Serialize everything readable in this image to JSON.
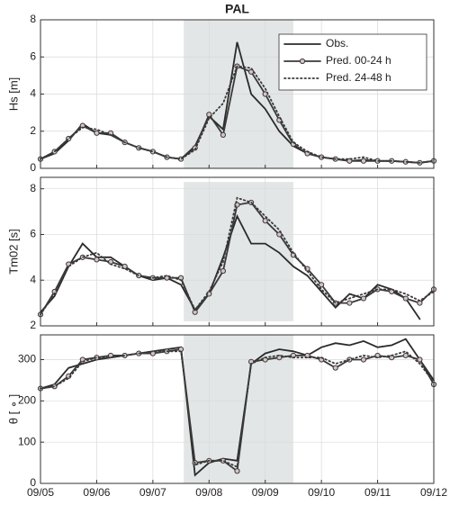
{
  "chart_data": [
    {
      "type": "line",
      "title": "PAL",
      "ylabel": "Hs [m]",
      "x": [
        0,
        0.25,
        0.5,
        0.75,
        1,
        1.25,
        1.5,
        1.75,
        2,
        2.25,
        2.5,
        2.75,
        3,
        3.25,
        3.5,
        3.75,
        4,
        4.25,
        4.5,
        4.75,
        5,
        5.25,
        5.5,
        5.75,
        6,
        6.25,
        6.5,
        6.75,
        7
      ],
      "series": [
        {
          "name": "Obs.",
          "color": "#2b2b2b",
          "values": [
            0.5,
            0.8,
            1.5,
            2.4,
            1.9,
            1.8,
            1.4,
            1.1,
            0.9,
            0.6,
            0.5,
            1.2,
            2.8,
            2.1,
            6.8,
            4.0,
            3.2,
            2.0,
            1.2,
            0.8,
            0.6,
            0.5,
            0.4,
            0.45,
            0.4,
            0.4,
            0.35,
            0.3,
            0.4
          ]
        },
        {
          "name": "Pred. 00-24 h",
          "color": "#3a3a3a",
          "marker": "o",
          "values": [
            0.5,
            0.9,
            1.6,
            2.3,
            1.9,
            1.9,
            1.4,
            1.1,
            0.9,
            0.6,
            0.5,
            1.1,
            2.9,
            1.8,
            5.5,
            5.2,
            4.0,
            2.6,
            1.3,
            0.8,
            0.6,
            0.5,
            0.4,
            0.4,
            0.4,
            0.4,
            0.35,
            0.3,
            0.4
          ]
        },
        {
          "name": "Pred. 24-48 h",
          "color": "#3a3a3a",
          "dash": "dotted",
          "values": [
            0.5,
            0.9,
            1.6,
            2.2,
            2.1,
            1.8,
            1.4,
            1.1,
            0.9,
            0.6,
            0.5,
            1.0,
            2.7,
            3.5,
            5.5,
            5.4,
            4.3,
            2.8,
            1.4,
            0.9,
            0.6,
            0.5,
            0.5,
            0.6,
            0.4,
            0.4,
            0.35,
            0.3,
            0.4
          ]
        }
      ],
      "xlim": [
        0,
        7
      ],
      "xticks": [
        0,
        1,
        2,
        3,
        4,
        5,
        6,
        7
      ],
      "ylim": [
        0,
        8
      ],
      "yticks": [
        0,
        2,
        4,
        6,
        8
      ],
      "highlight": [
        2.55,
        4.5
      ],
      "grid": true,
      "legend": "upper right"
    },
    {
      "type": "line",
      "ylabel": "Tm02 [s]",
      "x": [
        0,
        0.25,
        0.5,
        0.75,
        1,
        1.25,
        1.5,
        1.75,
        2,
        2.25,
        2.5,
        2.75,
        3,
        3.25,
        3.5,
        3.75,
        4,
        4.25,
        4.5,
        4.75,
        5,
        5.25,
        5.5,
        5.75,
        6,
        6.25,
        6.5,
        6.75,
        7
      ],
      "series": [
        {
          "name": "Obs.",
          "color": "#2b2b2b",
          "values": [
            2.6,
            3.3,
            4.6,
            5.6,
            5.0,
            5.0,
            4.6,
            4.2,
            4.0,
            4.1,
            3.8,
            2.7,
            3.4,
            5.0,
            6.8,
            5.6,
            5.6,
            5.2,
            4.6,
            4.2,
            3.5,
            2.8,
            3.4,
            3.2,
            3.8,
            3.6,
            3.2,
            2.3,
            null
          ]
        },
        {
          "name": "Pred. 00-24 h",
          "color": "#3a3a3a",
          "marker": "o",
          "values": [
            2.5,
            3.5,
            4.7,
            5.0,
            4.9,
            4.8,
            4.6,
            4.2,
            4.1,
            4.1,
            4.1,
            2.6,
            3.4,
            4.4,
            7.3,
            7.4,
            6.6,
            6.0,
            5.1,
            4.5,
            3.8,
            3.0,
            3.0,
            3.2,
            3.6,
            3.5,
            3.2,
            3.0,
            3.6
          ]
        },
        {
          "name": "Pred. 24-48 h",
          "color": "#3a3a3a",
          "dash": "dotted",
          "values": [
            2.5,
            3.4,
            4.6,
            5.0,
            5.2,
            4.7,
            4.5,
            4.2,
            4.1,
            4.2,
            4.0,
            2.7,
            3.5,
            4.8,
            7.6,
            7.4,
            6.8,
            6.2,
            5.2,
            4.4,
            3.6,
            3.0,
            3.2,
            3.4,
            3.6,
            3.6,
            3.4,
            3.1,
            3.5
          ]
        }
      ],
      "xlim": [
        0,
        7
      ],
      "xticks": [
        0,
        1,
        2,
        3,
        4,
        5,
        6,
        7
      ],
      "ylim": [
        2,
        8.5
      ],
      "yticks": [
        2,
        4,
        6,
        8
      ],
      "highlight": [
        2.55,
        4.5
      ],
      "highlight_y": [
        2.2,
        8.3
      ],
      "grid": true
    },
    {
      "type": "line",
      "ylabel": "θ [ ∘ ]",
      "x": [
        0,
        0.25,
        0.5,
        0.75,
        1,
        1.25,
        1.5,
        1.75,
        2,
        2.25,
        2.5,
        2.75,
        3,
        3.25,
        3.5,
        3.75,
        4,
        4.25,
        4.5,
        4.75,
        5,
        5.25,
        5.5,
        5.75,
        6,
        6.25,
        6.5,
        6.75,
        7
      ],
      "series": [
        {
          "name": "Obs.",
          "color": "#2b2b2b",
          "values": [
            230,
            240,
            280,
            290,
            300,
            305,
            310,
            315,
            320,
            325,
            330,
            20,
            50,
            60,
            55,
            290,
            315,
            325,
            320,
            310,
            330,
            340,
            335,
            345,
            330,
            335,
            350,
            300,
            250
          ]
        },
        {
          "name": "Pred. 00-24 h",
          "color": "#3a3a3a",
          "marker": "o",
          "values": [
            230,
            235,
            260,
            300,
            305,
            310,
            310,
            315,
            315,
            320,
            325,
            50,
            55,
            55,
            30,
            295,
            300,
            305,
            310,
            310,
            300,
            280,
            300,
            300,
            310,
            305,
            310,
            300,
            240
          ]
        },
        {
          "name": "Pred. 24-48 h",
          "color": "#3a3a3a",
          "dash": "dotted",
          "values": [
            230,
            235,
            255,
            295,
            305,
            305,
            310,
            315,
            320,
            320,
            320,
            45,
            55,
            55,
            40,
            290,
            305,
            310,
            305,
            305,
            305,
            290,
            300,
            310,
            305,
            310,
            320,
            290,
            245
          ]
        }
      ],
      "xlim": [
        0,
        7
      ],
      "xticks": [
        {
          "value": 0,
          "label": "09/05"
        },
        {
          "value": 1,
          "label": "09/06"
        },
        {
          "value": 2,
          "label": "09/07"
        },
        {
          "value": 3,
          "label": "09/08"
        },
        {
          "value": 4,
          "label": "09/09"
        },
        {
          "value": 5,
          "label": "09/10"
        },
        {
          "value": 6,
          "label": "09/11"
        },
        {
          "value": 7,
          "label": "09/12"
        }
      ],
      "ylim": [
        0,
        360
      ],
      "yticks": [
        0,
        100,
        200,
        300
      ],
      "highlight": [
        2.55,
        4.5
      ],
      "grid": true
    }
  ]
}
